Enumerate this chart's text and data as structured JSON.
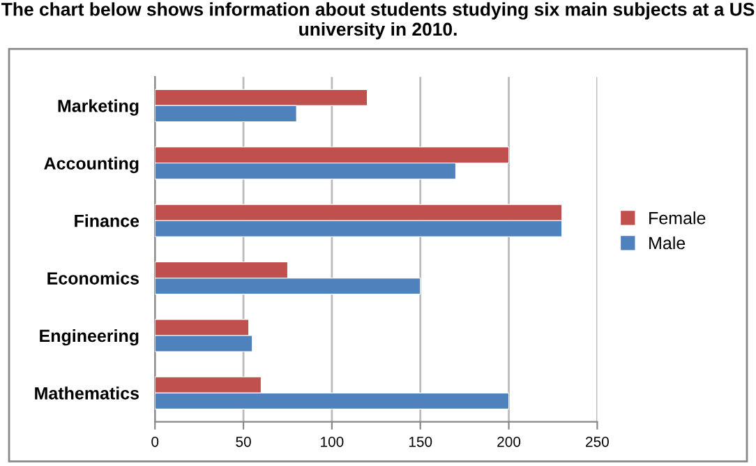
{
  "chart_data": {
    "type": "bar",
    "orientation": "horizontal",
    "title": "The chart below shows information about students studying six main subjects at a US university in 2010.",
    "categories": [
      "Marketing",
      "Accounting",
      "Finance",
      "Economics",
      "Engineering",
      "Mathematics"
    ],
    "series": [
      {
        "name": "Female",
        "color": "#c0504d",
        "values": [
          120,
          200,
          230,
          75,
          53,
          60
        ]
      },
      {
        "name": "Male",
        "color": "#4f81bd",
        "values": [
          80,
          170,
          230,
          150,
          55,
          200
        ]
      }
    ],
    "xlim": [
      0,
      250
    ],
    "xticks": [
      0,
      50,
      100,
      150,
      200,
      250
    ],
    "grid": "x",
    "legend": "right"
  }
}
